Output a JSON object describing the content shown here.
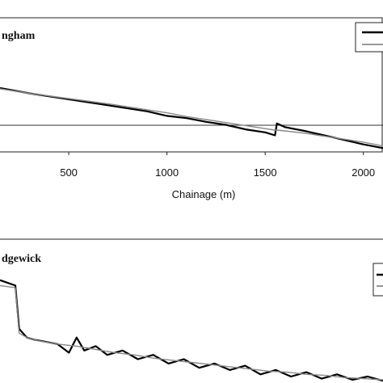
{
  "chart_data": [
    {
      "type": "line",
      "title": "ngham",
      "xlabel": "Chainage (m)",
      "x_ticks": [
        500,
        1000,
        1500,
        2000
      ],
      "xlim": [
        150,
        2100
      ],
      "ylim": [
        0,
        100
      ],
      "grid": false,
      "legend": "top-right",
      "series": [
        {
          "x": [
            150,
            300,
            500,
            700,
            900,
            1000,
            1100,
            1200,
            1300,
            1400,
            1500,
            1550,
            1560,
            1600,
            1700,
            1800,
            1900,
            2000,
            2100
          ],
          "y": [
            85,
            78,
            70,
            62,
            54,
            48,
            45,
            40,
            36,
            30,
            26,
            22,
            38,
            33,
            28,
            22,
            16,
            10,
            5
          ]
        },
        {
          "x": [
            150,
            300,
            500,
            700,
            900,
            1000,
            1100,
            1200,
            1300,
            1400,
            1500,
            1550,
            1560,
            1600,
            1700,
            1800,
            1900,
            2000,
            2100
          ],
          "y": [
            84,
            78,
            71,
            64,
            56,
            52,
            47,
            43,
            39,
            35,
            31,
            29,
            29,
            28,
            25,
            21,
            17,
            13,
            8
          ]
        }
      ]
    },
    {
      "type": "line",
      "title": "dgewick",
      "xlim": [
        0,
        100
      ],
      "ylim": [
        0,
        100
      ],
      "grid": false,
      "legend": "top-right",
      "series": [
        {
          "x": [
            0,
            4,
            5,
            7,
            9,
            12,
            15,
            18,
            20,
            22,
            25,
            28,
            32,
            36,
            40,
            44,
            48,
            52,
            56,
            60,
            64,
            68,
            72,
            76,
            80,
            84,
            88,
            92,
            96,
            100
          ],
          "y": [
            95,
            90,
            50,
            42,
            40,
            38,
            36,
            28,
            42,
            30,
            34,
            26,
            30,
            22,
            26,
            18,
            22,
            14,
            18,
            12,
            16,
            8,
            12,
            6,
            10,
            4,
            8,
            3,
            6,
            2
          ]
        },
        {
          "x": [
            0,
            4,
            5,
            7,
            10,
            15,
            20,
            25,
            30,
            35,
            40,
            45,
            50,
            55,
            60,
            65,
            70,
            75,
            80,
            85,
            90,
            95,
            100
          ],
          "y": [
            90,
            88,
            46,
            42,
            39,
            36,
            34,
            31,
            28,
            26,
            23,
            21,
            19,
            17,
            15,
            13,
            11,
            10,
            8,
            7,
            5,
            4,
            3
          ]
        }
      ]
    }
  ]
}
